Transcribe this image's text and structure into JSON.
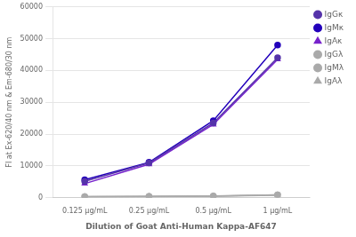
{
  "chart_data": {
    "type": "line",
    "categories": [
      "0.125 μg/mL",
      "0.25 μg/mL",
      "0.5 μg/mL",
      "1 μg/mL"
    ],
    "series": [
      {
        "name": "IgGκ",
        "color": "#5533AA",
        "marker": "circle",
        "line_style": "solid",
        "values": [
          5100,
          10900,
          23500,
          44000
        ]
      },
      {
        "name": "IgMκ",
        "color": "#2200BB",
        "marker": "circle",
        "line_style": "solid",
        "values": [
          5600,
          11100,
          24200,
          48000
        ]
      },
      {
        "name": "IgAκ",
        "color": "#7722CC",
        "marker": "triangle",
        "line_style": "solid",
        "values": [
          4400,
          10500,
          23000,
          43500
        ]
      },
      {
        "name": "IgGλ",
        "color": "#aaaaaa",
        "marker": "circle",
        "line_style": "solid",
        "values": [
          300,
          400,
          500,
          900
        ]
      },
      {
        "name": "IgMλ",
        "color": "#aaaaaa",
        "marker": "circle",
        "line_style": "solid",
        "values": [
          280,
          380,
          480,
          850
        ]
      },
      {
        "name": "IgAλ",
        "color": "#aaaaaa",
        "marker": "triangle",
        "line_style": "solid",
        "values": [
          250,
          320,
          430,
          750
        ]
      }
    ],
    "xlabel": "Dilution of Goat Anti-Human Kappa-AF647",
    "ylabel": "FI at Ex-620/40 nm & Em-680/30 nm",
    "ylim": [
      0,
      60000
    ],
    "yticks": [
      0,
      10000,
      20000,
      30000,
      40000,
      50000,
      60000
    ],
    "grid": "y",
    "legend": "right"
  }
}
